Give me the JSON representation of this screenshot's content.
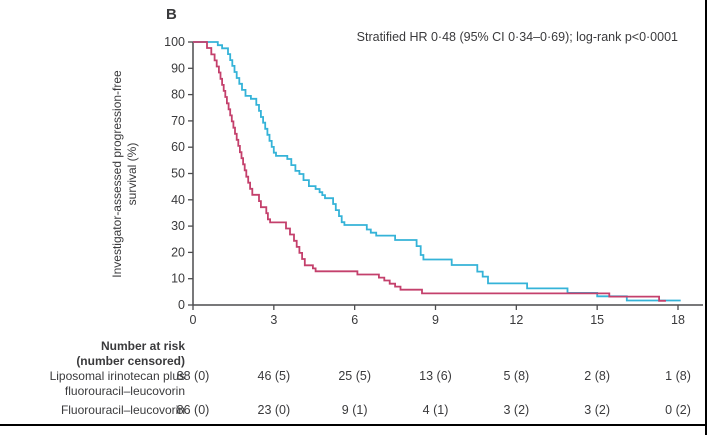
{
  "panel_label": "B",
  "annotation": "Stratified HR 0·48 (95% CI 0·34–0·69); log-rank p<0·0001",
  "y_axis": {
    "title_line1": "Investigator-assessed progression-free",
    "title_line2": "survival (%)",
    "ticks": [
      0,
      10,
      20,
      30,
      40,
      50,
      60,
      70,
      80,
      90,
      100
    ],
    "range": [
      0,
      100
    ]
  },
  "x_axis": {
    "ticks": [
      0,
      3,
      6,
      9,
      12,
      15,
      18
    ],
    "range": [
      0,
      18
    ]
  },
  "colors": {
    "irinotecan_line": "#35b3d8",
    "control_line": "#c4406c",
    "axis": "#4c4c4e",
    "text": "#3a3a3c",
    "rule": "#000000"
  },
  "chart_data": {
    "type": "line",
    "subtype": "kaplan-meier-step",
    "title": "",
    "xlabel": "",
    "ylabel": "Investigator-assessed progression-free survival (%)",
    "xlim": [
      0,
      18
    ],
    "ylim": [
      0,
      100
    ],
    "grid": false,
    "annotation": "Stratified HR 0·48 (95% CI 0·34–0·69); log-rank p<0·0001",
    "series": [
      {
        "name": "Liposomal irinotecan plus fluorouracil–leucovorin",
        "color": "#35b3d8",
        "steps": [
          [
            0,
            100
          ],
          [
            0.92,
            98.8
          ],
          [
            1.08,
            97.6
          ],
          [
            1.3,
            95.4
          ],
          [
            1.38,
            93.1
          ],
          [
            1.46,
            90.9
          ],
          [
            1.54,
            88.6
          ],
          [
            1.62,
            86.3
          ],
          [
            1.72,
            84.1
          ],
          [
            1.82,
            81.8
          ],
          [
            1.95,
            79.5
          ],
          [
            2.15,
            78.4
          ],
          [
            2.35,
            76.1
          ],
          [
            2.45,
            73.8
          ],
          [
            2.52,
            71.5
          ],
          [
            2.6,
            69.3
          ],
          [
            2.68,
            67
          ],
          [
            2.76,
            64.7
          ],
          [
            2.84,
            62.4
          ],
          [
            2.92,
            60.1
          ],
          [
            3.0,
            57.9
          ],
          [
            3.08,
            56.7
          ],
          [
            3.5,
            55.5
          ],
          [
            3.65,
            53.2
          ],
          [
            3.8,
            51
          ],
          [
            3.95,
            49.8
          ],
          [
            4.1,
            47.5
          ],
          [
            4.3,
            45.2
          ],
          [
            4.55,
            44.1
          ],
          [
            4.7,
            42.9
          ],
          [
            4.8,
            41.8
          ],
          [
            4.9,
            40.6
          ],
          [
            5.2,
            38.4
          ],
          [
            5.3,
            36.1
          ],
          [
            5.42,
            33.8
          ],
          [
            5.52,
            31.5
          ],
          [
            5.62,
            30.4
          ],
          [
            6.45,
            28.7
          ],
          [
            6.6,
            27.5
          ],
          [
            6.8,
            26.4
          ],
          [
            7.5,
            24.7
          ],
          [
            8.3,
            22.4
          ],
          [
            8.45,
            19
          ],
          [
            8.55,
            17.3
          ],
          [
            9.6,
            15.2
          ],
          [
            10.55,
            12.7
          ],
          [
            10.75,
            10.8
          ],
          [
            10.95,
            8.2
          ],
          [
            12.4,
            6.3
          ],
          [
            13.9,
            4.6
          ],
          [
            15.0,
            3.3
          ],
          [
            16.1,
            1.7
          ],
          [
            18.1,
            1.7
          ]
        ]
      },
      {
        "name": "Fluorouracil–leucovorin",
        "color": "#c4406c",
        "steps": [
          [
            0,
            100
          ],
          [
            0.52,
            97.7
          ],
          [
            0.68,
            95.3
          ],
          [
            0.8,
            93
          ],
          [
            0.88,
            90.7
          ],
          [
            0.96,
            88.4
          ],
          [
            1.02,
            86
          ],
          [
            1.08,
            83.7
          ],
          [
            1.14,
            81.4
          ],
          [
            1.2,
            79.1
          ],
          [
            1.26,
            76.7
          ],
          [
            1.32,
            74.4
          ],
          [
            1.38,
            72.1
          ],
          [
            1.44,
            69.8
          ],
          [
            1.5,
            67.4
          ],
          [
            1.56,
            65.1
          ],
          [
            1.62,
            62.8
          ],
          [
            1.68,
            60.5
          ],
          [
            1.74,
            58.1
          ],
          [
            1.8,
            55.8
          ],
          [
            1.86,
            53.5
          ],
          [
            1.92,
            51.2
          ],
          [
            1.98,
            48.8
          ],
          [
            2.05,
            46.5
          ],
          [
            2.12,
            44.2
          ],
          [
            2.2,
            41.9
          ],
          [
            2.45,
            39.5
          ],
          [
            2.52,
            37.2
          ],
          [
            2.72,
            34.9
          ],
          [
            2.78,
            32.6
          ],
          [
            2.86,
            31.4
          ],
          [
            3.45,
            29.1
          ],
          [
            3.6,
            26.8
          ],
          [
            3.75,
            24.4
          ],
          [
            3.85,
            22.1
          ],
          [
            3.95,
            19.8
          ],
          [
            4.05,
            17.5
          ],
          [
            4.15,
            15.1
          ],
          [
            4.45,
            13.9
          ],
          [
            4.55,
            12.8
          ],
          [
            6.1,
            11.6
          ],
          [
            6.9,
            10.4
          ],
          [
            7.1,
            9.3
          ],
          [
            7.3,
            8.1
          ],
          [
            7.5,
            7
          ],
          [
            7.7,
            5.8
          ],
          [
            8.5,
            4.4
          ],
          [
            15.45,
            3.2
          ],
          [
            17.3,
            1.6
          ],
          [
            17.55,
            1.6
          ]
        ]
      }
    ]
  },
  "risk_table": {
    "header_line1": "Number at risk",
    "header_line2": "(number censored)",
    "rows": [
      {
        "label_line1": "Liposomal irinotecan plus",
        "label_line2": "fluorouracil–leucovorin",
        "values": [
          "88 (0)",
          "46 (5)",
          "25 (5)",
          "13 (6)",
          "5 (8)",
          "2 (8)",
          "1 (8)"
        ]
      },
      {
        "label_line1": "Fluorouracil–leucovorin",
        "label_line2": "",
        "values": [
          "86 (0)",
          "23 (0)",
          "9 (1)",
          "4 (1)",
          "3 (2)",
          "3 (2)",
          "0 (2)"
        ]
      }
    ]
  }
}
